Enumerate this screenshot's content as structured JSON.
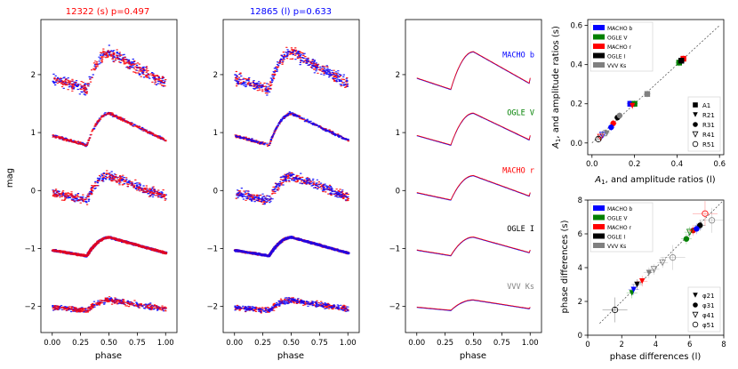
{
  "chart_data": [
    {
      "type": "scatter",
      "title": "12322 (s) p=0.497",
      "title_color": "#ff0000",
      "xlabel": "phase",
      "ylabel": "mag",
      "xlim": [
        -0.1,
        1.1
      ],
      "ylim": [
        -2.45,
        2.95
      ],
      "xticks": [
        "0.00",
        "0.25",
        "0.50",
        "0.75",
        "1.00"
      ],
      "yticks": [
        "2",
        "1",
        "0",
        "−1",
        "−2"
      ],
      "series": [
        {
          "name": "MACHO b",
          "offset": 2.0,
          "amp": 0.65,
          "noise": 0.06
        },
        {
          "name": "OGLE V",
          "offset": 1.0,
          "amp": 0.55,
          "noise": 0.015
        },
        {
          "name": "MACHO r",
          "offset": 0.0,
          "amp": 0.42,
          "noise": 0.05
        },
        {
          "name": "OGLE I",
          "offset": -1.0,
          "amp": 0.32,
          "noise": 0.012
        },
        {
          "name": "VVV Ks",
          "offset": -2.0,
          "amp": 0.18,
          "noise": 0.03
        }
      ],
      "colors": [
        "#0000ff",
        "#ff0000"
      ]
    },
    {
      "type": "scatter",
      "title": "12865 (l) p=0.633",
      "title_color": "#0000ff",
      "xlabel": "phase",
      "xlim": [
        -0.1,
        1.1
      ],
      "ylim": [
        -2.45,
        2.95
      ],
      "xticks": [
        "0.00",
        "0.25",
        "0.50",
        "0.75",
        "1.00"
      ],
      "yticks": [
        "2",
        "1",
        "0",
        "−1",
        "−2"
      ],
      "colors": [
        "#ff0000",
        "#0000ff"
      ]
    },
    {
      "type": "line",
      "xlabel": "phase",
      "xlim": [
        -0.1,
        1.1
      ],
      "ylim": [
        -2.45,
        2.95
      ],
      "xticks": [
        "0.00",
        "0.25",
        "0.50",
        "0.75",
        "1.00"
      ],
      "yticks": [
        "2",
        "1",
        "0",
        "−1",
        "−2"
      ],
      "labels": [
        {
          "text": "MACHO b",
          "color": "#0000ff"
        },
        {
          "text": "OGLE V",
          "color": "#008000"
        },
        {
          "text": "MACHO r",
          "color": "#ff0000"
        },
        {
          "text": "OGLE I",
          "color": "#000000"
        },
        {
          "text": "VVV Ks",
          "color": "#808080"
        }
      ]
    },
    {
      "type": "scatter",
      "xlabel": "A1, and amplitude ratios (l)",
      "ylabel": "A1, and amplitude ratios (s)",
      "xlim": [
        -0.02,
        0.62
      ],
      "ylim": [
        -0.06,
        0.63
      ],
      "xticks": [
        "0.0",
        "0.2",
        "0.4",
        "0.6"
      ],
      "yticks": [
        "0.0",
        "0.2",
        "0.4",
        "0.6"
      ],
      "legend_surveys": [
        "MACHO b",
        "OGLE V",
        "MACHO r",
        "OGLE I",
        "VVV Ks"
      ],
      "legend_markers": [
        "A1",
        "R21",
        "R31",
        "R41",
        "R51"
      ],
      "points": [
        {
          "x": 0.42,
          "y": 0.42,
          "m": "sq",
          "c": "#0000ff"
        },
        {
          "x": 0.43,
          "y": 0.43,
          "m": "sq",
          "c": "#ff0000"
        },
        {
          "x": 0.41,
          "y": 0.41,
          "m": "sq",
          "c": "#008000"
        },
        {
          "x": 0.42,
          "y": 0.42,
          "m": "sq",
          "c": "#000000"
        },
        {
          "x": 0.18,
          "y": 0.2,
          "m": "sq",
          "c": "#0000ff"
        },
        {
          "x": 0.2,
          "y": 0.2,
          "m": "sq",
          "c": "#008000"
        },
        {
          "x": 0.19,
          "y": 0.19,
          "m": "tri",
          "c": "#ff0000"
        },
        {
          "x": 0.26,
          "y": 0.25,
          "m": "sq",
          "c": "#808080"
        },
        {
          "x": 0.12,
          "y": 0.13,
          "m": "circ",
          "c": "#000000"
        },
        {
          "x": 0.1,
          "y": 0.1,
          "m": "circ",
          "c": "#ff0000"
        },
        {
          "x": 0.09,
          "y": 0.08,
          "m": "circ",
          "c": "#0000ff"
        },
        {
          "x": 0.13,
          "y": 0.14,
          "m": "circ",
          "c": "#808080"
        },
        {
          "x": 0.05,
          "y": 0.04,
          "m": "otri",
          "c": "#0000ff"
        },
        {
          "x": 0.04,
          "y": 0.03,
          "m": "otri",
          "c": "#ff0000"
        },
        {
          "x": 0.06,
          "y": 0.05,
          "m": "ocirc",
          "c": "#808080"
        },
        {
          "x": 0.03,
          "y": 0.02,
          "m": "ocirc",
          "c": "#000000"
        },
        {
          "x": 0.07,
          "y": 0.05,
          "m": "tri",
          "c": "#808080"
        }
      ]
    },
    {
      "type": "scatter",
      "xlabel": "phase differences (l)",
      "ylabel": "phase differences (s)",
      "xlim": [
        0,
        8
      ],
      "ylim": [
        0,
        8
      ],
      "xticks": [
        "0",
        "2",
        "4",
        "6",
        "8"
      ],
      "yticks": [
        "0",
        "2",
        "4",
        "6",
        "8"
      ],
      "legend_surveys": [
        "MACHO b",
        "OGLE V",
        "MACHO r",
        "OGLE I",
        "VVV Ks"
      ],
      "legend_markers": [
        "φ21",
        "φ31",
        "φ41",
        "φ51"
      ],
      "points": [
        {
          "x": 2.6,
          "y": 2.5,
          "m": "tri",
          "c": "#008000"
        },
        {
          "x": 2.7,
          "y": 2.7,
          "m": "tri",
          "c": "#0000ff"
        },
        {
          "x": 2.9,
          "y": 3.0,
          "m": "tri",
          "c": "#000000"
        },
        {
          "x": 3.2,
          "y": 3.2,
          "m": "tri",
          "c": "#ff0000"
        },
        {
          "x": 3.6,
          "y": 3.7,
          "m": "tri",
          "c": "#808080"
        },
        {
          "x": 5.8,
          "y": 5.7,
          "m": "circ",
          "c": "#008000"
        },
        {
          "x": 6.2,
          "y": 6.2,
          "m": "circ",
          "c": "#ff0000"
        },
        {
          "x": 6.6,
          "y": 6.5,
          "m": "circ",
          "c": "#000000"
        },
        {
          "x": 6.4,
          "y": 6.3,
          "m": "circ",
          "c": "#0000ff"
        },
        {
          "x": 4.4,
          "y": 4.3,
          "m": "otri",
          "c": "#808080"
        },
        {
          "x": 3.9,
          "y": 3.9,
          "m": "otri",
          "c": "#808080"
        },
        {
          "x": 6.0,
          "y": 6.1,
          "m": "otri",
          "c": "#008000"
        },
        {
          "x": 6.9,
          "y": 7.2,
          "m": "ocirc",
          "c": "#ff0000"
        },
        {
          "x": 5.0,
          "y": 4.6,
          "m": "ocirc",
          "c": "#808080"
        },
        {
          "x": 1.6,
          "y": 1.5,
          "m": "ocirc",
          "c": "#000000"
        },
        {
          "x": 7.3,
          "y": 6.8,
          "m": "ocirc",
          "c": "#808080"
        }
      ]
    }
  ]
}
